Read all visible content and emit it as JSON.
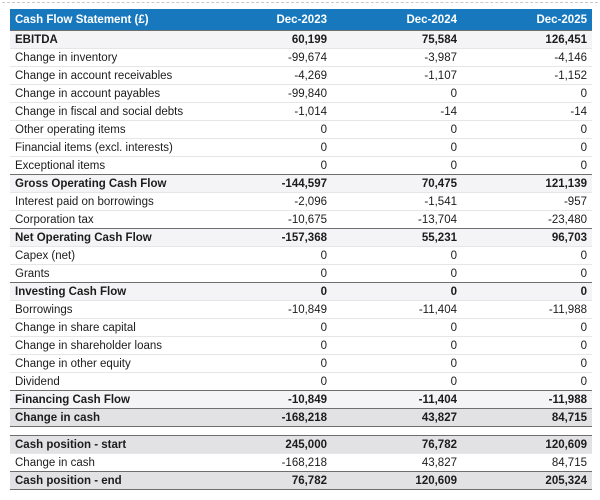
{
  "table": {
    "title": "Cash Flow Statement (£)",
    "columns": [
      "Dec-2023",
      "Dec-2024",
      "Dec-2025"
    ],
    "main_rows": [
      {
        "label": "EBITDA",
        "kind": "section",
        "values": [
          "60,199",
          "75,584",
          "126,451"
        ]
      },
      {
        "label": "Change in inventory",
        "kind": "normal",
        "values": [
          "-99,674",
          "-3,987",
          "-4,146"
        ]
      },
      {
        "label": "Change in account receivables",
        "kind": "normal",
        "values": [
          "-4,269",
          "-1,107",
          "-1,152"
        ]
      },
      {
        "label": "Change in account payables",
        "kind": "normal",
        "values": [
          "-99,840",
          "0",
          "0"
        ]
      },
      {
        "label": "Change in fiscal and social debts",
        "kind": "normal",
        "values": [
          "-1,014",
          "-14",
          "-14"
        ]
      },
      {
        "label": "Other operating items",
        "kind": "normal",
        "values": [
          "0",
          "0",
          "0"
        ]
      },
      {
        "label": "Financial items (excl. interests)",
        "kind": "normal",
        "values": [
          "0",
          "0",
          "0"
        ]
      },
      {
        "label": "Exceptional items",
        "kind": "normal",
        "values": [
          "0",
          "0",
          "0"
        ]
      },
      {
        "label": "Gross Operating Cash Flow",
        "kind": "section",
        "values": [
          "-144,597",
          "70,475",
          "121,139"
        ]
      },
      {
        "label": "Interest paid on borrowings",
        "kind": "normal",
        "values": [
          "-2,096",
          "-1,541",
          "-957"
        ]
      },
      {
        "label": "Corporation tax",
        "kind": "normal",
        "values": [
          "-10,675",
          "-13,704",
          "-23,480"
        ]
      },
      {
        "label": "Net Operating Cash Flow",
        "kind": "section",
        "values": [
          "-157,368",
          "55,231",
          "96,703"
        ]
      },
      {
        "label": "Capex (net)",
        "kind": "normal",
        "values": [
          "0",
          "0",
          "0"
        ]
      },
      {
        "label": "Grants",
        "kind": "normal",
        "values": [
          "0",
          "0",
          "0"
        ]
      },
      {
        "label": "Investing Cash Flow",
        "kind": "section",
        "values": [
          "0",
          "0",
          "0"
        ]
      },
      {
        "label": "Borrowings",
        "kind": "normal",
        "values": [
          "-10,849",
          "-11,404",
          "-11,988"
        ]
      },
      {
        "label": "Change in share capital",
        "kind": "normal",
        "values": [
          "0",
          "0",
          "0"
        ]
      },
      {
        "label": "Change in shareholder loans",
        "kind": "normal",
        "values": [
          "0",
          "0",
          "0"
        ]
      },
      {
        "label": "Change in other equity",
        "kind": "normal",
        "values": [
          "0",
          "0",
          "0"
        ]
      },
      {
        "label": "Dividend",
        "kind": "normal",
        "values": [
          "0",
          "0",
          "0"
        ]
      },
      {
        "label": "Financing Cash Flow",
        "kind": "section",
        "values": [
          "-10,849",
          "-11,404",
          "-11,988"
        ]
      },
      {
        "label": "Change in cash",
        "kind": "total",
        "values": [
          "-168,218",
          "43,827",
          "84,715"
        ]
      }
    ],
    "summary_rows": [
      {
        "label": "Cash position - start",
        "kind": "total",
        "values": [
          "245,000",
          "76,782",
          "120,609"
        ]
      },
      {
        "label": "Change in cash",
        "kind": "normal",
        "values": [
          "-168,218",
          "43,827",
          "84,715"
        ]
      },
      {
        "label": "Cash position - end",
        "kind": "total",
        "values": [
          "76,782",
          "120,609",
          "205,324"
        ]
      }
    ]
  },
  "colors": {
    "header_bg": "#1778be",
    "header_text": "#ffffff",
    "section_row_bg": "#f4f4f6",
    "total_row_bg": "#e2e2e4"
  }
}
